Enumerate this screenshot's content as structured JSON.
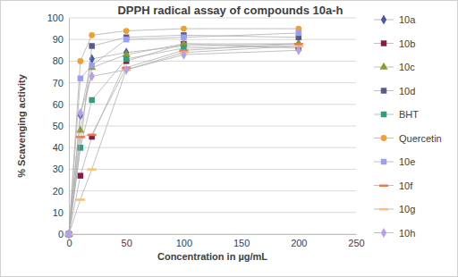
{
  "chart_data": {
    "type": "line",
    "title": "DPPH radical assay of compounds 10a-h",
    "x_label": "Concentration in µg/mL",
    "y_label": "% Scavenging activity",
    "x": [
      0,
      10,
      20,
      50,
      100,
      200
    ],
    "xlim": [
      0,
      250
    ],
    "xticks": [
      0,
      50,
      100,
      150,
      200,
      250
    ],
    "ylim": [
      0,
      100
    ],
    "yticks": [
      0,
      10,
      20,
      30,
      40,
      50,
      60,
      70,
      80,
      90,
      100
    ],
    "grid": true,
    "legend": "right",
    "series": [
      {
        "name": "10a",
        "color": "#4b5aa0",
        "marker": "diamond",
        "values": [
          0,
          55,
          81,
          84,
          87,
          88
        ]
      },
      {
        "name": "10b",
        "color": "#8b1a4a",
        "marker": "square",
        "values": [
          0,
          27,
          45,
          80,
          88,
          86
        ]
      },
      {
        "name": "10c",
        "color": "#8b9a2a",
        "marker": "triangle",
        "values": [
          0,
          48,
          77,
          83,
          88,
          88
        ]
      },
      {
        "name": "10d",
        "color": "#5a5a8a",
        "marker": "square",
        "values": [
          0,
          40,
          87,
          91,
          92,
          91
        ]
      },
      {
        "name": "BHT",
        "color": "#2e9e7e",
        "marker": "square",
        "values": [
          0,
          40,
          62,
          81,
          86,
          87
        ]
      },
      {
        "name": "Quercetin",
        "color": "#f0a030",
        "marker": "circle",
        "values": [
          0,
          80,
          92,
          94,
          95,
          95
        ]
      },
      {
        "name": "10e",
        "color": "#9aa0f0",
        "marker": "square",
        "values": [
          0,
          72,
          78,
          90,
          91,
          93
        ]
      },
      {
        "name": "10f",
        "color": "#f07850",
        "marker": "dash",
        "values": [
          0,
          45,
          46,
          77,
          85,
          88
        ]
      },
      {
        "name": "10g",
        "color": "#f8c070",
        "marker": "dash",
        "values": [
          0,
          16,
          30,
          76,
          84,
          87
        ]
      },
      {
        "name": "10h",
        "color": "#b8a0e8",
        "marker": "diamond",
        "values": [
          0,
          56,
          73,
          76,
          83,
          85
        ]
      }
    ]
  }
}
